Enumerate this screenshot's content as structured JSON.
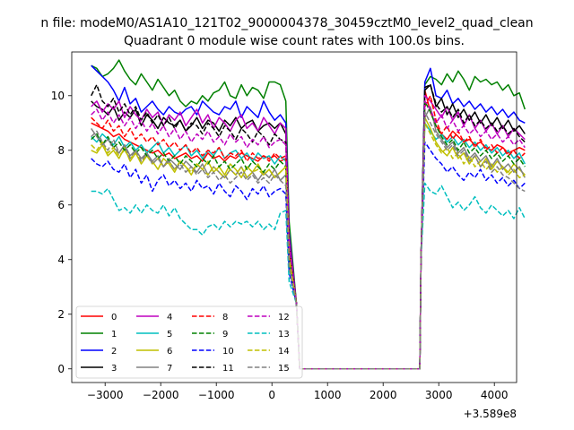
{
  "figure": {
    "suptitle": "n file: modeM0/AS1A10_121T02_9000004378_30459cztM0_level2_quad_clean",
    "offset_text": "+3.589e8"
  },
  "chart_data": {
    "type": "line",
    "title": "Quadrant 0 module wise count rates with 100.0s bins.",
    "xlabel": "",
    "ylabel": "",
    "x_offset": 358900000,
    "xlim": [
      -3600,
      4400
    ],
    "ylim": [
      -0.5,
      11.6
    ],
    "xticks": [
      -3000,
      -2000,
      -1000,
      0,
      1000,
      2000,
      3000,
      4000
    ],
    "xtick_labels": [
      "−3000",
      "−2000",
      "−1000",
      "0",
      "1000",
      "2000",
      "3000",
      "4000"
    ],
    "yticks": [
      0,
      2,
      4,
      6,
      8,
      10
    ],
    "ytick_labels": [
      "0",
      "2",
      "4",
      "6",
      "8",
      "10"
    ],
    "grid": false,
    "legend_location": "lower-left",
    "legend_columns": 4,
    "gap": [
      500,
      2660
    ],
    "series": [
      {
        "name": "0",
        "color": "#ff0000",
        "style": "solid",
        "pre": [
          9.0,
          8.9,
          8.8,
          8.7,
          8.5,
          8.6,
          8.4,
          8.3,
          8.2,
          8.1,
          8.0,
          7.9,
          8.0,
          7.8,
          7.9,
          7.7,
          7.8,
          7.9,
          7.7,
          7.8,
          7.6,
          7.9,
          7.7,
          7.8,
          7.6,
          7.8,
          7.7,
          7.9,
          7.8,
          7.7,
          7.6,
          7.8,
          7.7,
          7.8,
          7.6,
          7.7
        ],
        "post": [
          10.2,
          9.4,
          8.9,
          8.6,
          8.4,
          8.7,
          8.5,
          8.3,
          8.4,
          8.2,
          8.3,
          8.1,
          8.0,
          8.2,
          8.1,
          7.9,
          8.0,
          8.1,
          8.0
        ]
      },
      {
        "name": "1",
        "color": "#008000",
        "style": "solid",
        "pre": [
          11.1,
          11.0,
          10.7,
          10.8,
          11.0,
          11.3,
          10.9,
          10.6,
          10.4,
          10.8,
          10.5,
          10.2,
          10.6,
          10.3,
          10.0,
          10.2,
          9.8,
          9.6,
          9.8,
          9.7,
          10.0,
          9.8,
          10.1,
          10.2,
          10.5,
          10.0,
          9.9,
          10.4,
          10.0,
          10.3,
          10.2,
          9.9,
          10.5,
          10.5,
          10.4,
          9.8
        ],
        "post": [
          10.4,
          10.7,
          10.6,
          10.4,
          10.8,
          10.5,
          10.9,
          10.6,
          10.2,
          10.7,
          10.5,
          10.6,
          10.4,
          10.5,
          10.2,
          10.4,
          10.0,
          10.1,
          9.5
        ]
      },
      {
        "name": "2",
        "color": "#0000ff",
        "style": "solid",
        "pre": [
          11.1,
          10.9,
          10.7,
          10.5,
          10.2,
          9.8,
          10.3,
          9.7,
          9.9,
          9.4,
          9.6,
          9.8,
          9.5,
          9.3,
          9.6,
          9.4,
          9.3,
          9.5,
          9.6,
          9.3,
          9.8,
          9.6,
          9.4,
          9.3,
          9.6,
          9.5,
          9.8,
          9.2,
          9.6,
          9.4,
          9.2,
          9.8,
          9.4,
          9.1,
          9.3,
          9.0
        ],
        "post": [
          10.5,
          11.0,
          10.0,
          9.9,
          10.2,
          9.7,
          9.9,
          9.6,
          9.8,
          9.5,
          9.7,
          9.4,
          9.6,
          9.3,
          9.5,
          9.2,
          9.4,
          9.1,
          9.0
        ]
      },
      {
        "name": "3",
        "color": "#000000",
        "style": "solid",
        "pre": [
          9.8,
          9.6,
          9.5,
          9.3,
          9.6,
          9.1,
          9.4,
          9.2,
          9.5,
          8.9,
          9.3,
          9.1,
          8.8,
          9.2,
          9.0,
          8.9,
          9.1,
          8.7,
          8.9,
          9.2,
          8.8,
          9.1,
          9.0,
          8.7,
          9.1,
          8.9,
          9.2,
          8.8,
          9.0,
          9.1,
          8.7,
          8.9,
          9.0,
          8.8,
          9.0,
          8.6
        ],
        "post": [
          10.2,
          10.4,
          9.6,
          9.9,
          9.3,
          9.7,
          9.2,
          9.5,
          9.1,
          9.4,
          9.0,
          9.3,
          8.9,
          9.2,
          8.8,
          9.1,
          8.7,
          8.9,
          8.6
        ]
      },
      {
        "name": "4",
        "color": "#bf00bf",
        "style": "solid",
        "pre": [
          9.6,
          9.8,
          9.4,
          9.7,
          9.5,
          9.8,
          9.2,
          9.6,
          9.3,
          9.1,
          9.5,
          9.2,
          9.4,
          8.9,
          9.3,
          9.1,
          9.4,
          8.9,
          9.2,
          9.5,
          9.0,
          9.3,
          8.8,
          9.2,
          9.0,
          8.7,
          9.1,
          9.3,
          8.8,
          9.0,
          8.7,
          9.2,
          8.9,
          8.6,
          9.0,
          8.8
        ],
        "post": [
          10.0,
          9.8,
          9.5,
          9.2,
          9.6,
          9.1,
          9.4,
          8.9,
          9.3,
          8.8,
          9.1,
          8.7,
          9.0,
          8.6,
          8.9,
          8.5,
          8.8,
          8.6,
          8.4
        ]
      },
      {
        "name": "5",
        "color": "#00bfbf",
        "style": "solid",
        "pre": [
          8.5,
          8.3,
          8.6,
          8.4,
          8.2,
          8.5,
          8.1,
          8.3,
          8.0,
          8.2,
          7.9,
          8.1,
          8.3,
          7.9,
          8.1,
          7.8,
          8.0,
          8.2,
          7.8,
          8.0,
          7.7,
          8.0,
          7.8,
          8.1,
          7.7,
          7.9,
          8.0,
          7.7,
          7.9,
          7.6,
          7.9,
          7.7,
          7.8,
          7.5,
          7.8,
          7.6
        ],
        "post": [
          9.0,
          8.7,
          8.4,
          8.6,
          8.3,
          8.5,
          8.2,
          8.4,
          8.1,
          8.3,
          8.0,
          8.2,
          7.9,
          8.1,
          7.8,
          8.0,
          7.7,
          7.9,
          7.5
        ]
      },
      {
        "name": "6",
        "color": "#bfbf00",
        "style": "solid",
        "pre": [
          8.0,
          7.9,
          8.2,
          7.8,
          8.0,
          7.7,
          8.1,
          7.6,
          7.9,
          7.5,
          7.8,
          7.6,
          7.3,
          7.7,
          7.5,
          7.2,
          7.6,
          7.4,
          7.1,
          7.5,
          7.3,
          7.6,
          7.2,
          7.4,
          7.1,
          7.5,
          7.3,
          7.0,
          7.4,
          7.2,
          7.5,
          7.1,
          7.3,
          7.0,
          7.2,
          7.4
        ],
        "post": [
          9.2,
          8.8,
          8.3,
          8.0,
          7.8,
          8.1,
          7.7,
          7.9,
          7.5,
          7.8,
          7.4,
          7.7,
          7.3,
          7.6,
          7.4,
          7.2,
          7.5,
          7.3,
          7.1
        ]
      },
      {
        "name": "7",
        "color": "#808080",
        "style": "solid",
        "pre": [
          8.8,
          8.5,
          8.2,
          8.4,
          8.1,
          7.9,
          8.2,
          7.8,
          8.0,
          7.7,
          7.9,
          7.6,
          7.8,
          7.4,
          7.7,
          7.5,
          7.3,
          7.6,
          7.4,
          7.2,
          7.5,
          7.1,
          7.4,
          7.2,
          7.0,
          7.3,
          7.1,
          7.4,
          7.0,
          7.2,
          6.9,
          7.2,
          7.0,
          7.3,
          6.9,
          7.1
        ],
        "post": [
          9.2,
          9.6,
          8.7,
          8.4,
          8.1,
          8.3,
          7.9,
          8.1,
          7.7,
          7.9,
          7.6,
          7.8,
          7.4,
          7.7,
          7.3,
          7.5,
          7.2,
          7.4,
          7.0
        ]
      },
      {
        "name": "8",
        "color": "#ff0000",
        "style": "dashed",
        "pre": [
          9.2,
          9.0,
          8.8,
          9.1,
          8.7,
          8.9,
          8.5,
          8.8,
          8.4,
          8.6,
          8.3,
          8.5,
          8.2,
          8.4,
          8.1,
          8.3,
          8.0,
          8.2,
          7.9,
          8.1,
          7.8,
          8.0,
          7.9,
          8.1,
          7.7,
          7.9,
          7.8,
          8.0,
          7.6,
          7.9,
          7.7,
          7.8,
          7.6,
          7.9,
          7.7,
          7.8
        ],
        "post": [
          9.6,
          10.0,
          9.1,
          8.6,
          8.9,
          8.4,
          8.7,
          8.3,
          8.5,
          8.1,
          8.4,
          8.0,
          8.2,
          7.9,
          8.1,
          7.8,
          8.0,
          7.7,
          7.9
        ]
      },
      {
        "name": "9",
        "color": "#008000",
        "style": "dashed",
        "pre": [
          8.4,
          8.6,
          8.2,
          8.5,
          8.1,
          8.3,
          8.0,
          8.2,
          7.9,
          8.1,
          7.8,
          8.0,
          7.7,
          7.9,
          7.6,
          7.8,
          7.5,
          7.8,
          7.6,
          7.4,
          7.7,
          7.5,
          7.8,
          7.4,
          7.6,
          7.3,
          7.5,
          7.7,
          7.3,
          7.6,
          7.4,
          7.2,
          7.5,
          7.3,
          7.6,
          7.4
        ],
        "post": [
          9.8,
          9.4,
          8.9,
          8.5,
          8.2,
          8.4,
          8.0,
          8.3,
          7.9,
          8.1,
          7.8,
          8.0,
          7.7,
          7.9,
          7.6,
          7.8,
          7.5,
          7.7,
          7.4
        ]
      },
      {
        "name": "10",
        "color": "#0000ff",
        "style": "dashed",
        "pre": [
          7.7,
          7.5,
          7.4,
          7.6,
          7.3,
          7.2,
          7.5,
          7.0,
          7.3,
          6.8,
          7.1,
          6.5,
          6.9,
          7.1,
          6.7,
          6.9,
          6.6,
          6.8,
          6.5,
          6.9,
          6.6,
          6.7,
          6.4,
          6.8,
          6.5,
          6.3,
          6.7,
          6.5,
          6.2,
          6.6,
          6.4,
          6.7,
          6.3,
          6.5,
          6.6,
          6.4
        ],
        "post": [
          8.3,
          8.0,
          7.7,
          7.5,
          7.2,
          7.4,
          7.1,
          6.9,
          7.2,
          7.0,
          7.3,
          6.9,
          7.1,
          6.8,
          7.0,
          6.7,
          6.9,
          6.6,
          6.8
        ]
      },
      {
        "name": "11",
        "color": "#000000",
        "style": "dashed",
        "pre": [
          10.0,
          10.4,
          9.8,
          9.6,
          9.9,
          9.4,
          9.7,
          9.3,
          9.6,
          9.1,
          9.4,
          9.0,
          9.3,
          8.9,
          9.2,
          8.8,
          9.1,
          8.7,
          9.0,
          8.9,
          8.6,
          9.0,
          8.8,
          8.5,
          8.9,
          8.7,
          8.4,
          8.8,
          8.6,
          8.3,
          8.7,
          8.5,
          8.2,
          8.6,
          8.4,
          8.3
        ],
        "post": [
          10.3,
          10.4,
          9.7,
          9.4,
          9.6,
          9.2,
          9.5,
          9.0,
          9.3,
          8.9,
          9.1,
          8.8,
          9.0,
          8.7,
          8.9,
          8.6,
          8.8,
          8.5,
          8.3
        ]
      },
      {
        "name": "12",
        "color": "#bf00bf",
        "style": "dashed",
        "pre": [
          9.3,
          9.5,
          9.1,
          9.4,
          9.0,
          9.3,
          8.9,
          9.2,
          8.8,
          9.1,
          8.7,
          9.0,
          8.6,
          8.9,
          8.5,
          8.8,
          8.4,
          8.7,
          8.3,
          8.6,
          8.4,
          8.7,
          8.3,
          8.5,
          8.2,
          8.6,
          8.3,
          8.5,
          8.1,
          8.4,
          8.2,
          8.5,
          8.1,
          8.3,
          8.4,
          8.2
        ],
        "post": [
          9.8,
          9.5,
          9.0,
          9.3,
          8.8,
          9.1,
          8.7,
          8.9,
          8.6,
          8.8,
          8.5,
          8.7,
          8.4,
          8.6,
          8.3,
          8.5,
          8.2,
          8.4,
          8.1
        ]
      },
      {
        "name": "13",
        "color": "#00bfbf",
        "style": "dashed",
        "pre": [
          6.5,
          6.5,
          6.4,
          6.6,
          6.2,
          5.8,
          5.9,
          5.7,
          6.0,
          5.7,
          6.0,
          5.8,
          5.7,
          6.0,
          5.6,
          5.9,
          5.5,
          5.3,
          5.1,
          5.1,
          4.9,
          5.2,
          5.3,
          5.1,
          5.4,
          5.2,
          5.4,
          5.3,
          5.4,
          5.2,
          5.4,
          5.1,
          5.3,
          5.1,
          5.7,
          5.8
        ],
        "post": [
          6.8,
          6.5,
          6.4,
          6.7,
          6.3,
          5.9,
          6.1,
          5.8,
          6.0,
          6.3,
          5.9,
          5.7,
          6.0,
          5.8,
          5.6,
          5.8,
          5.5,
          5.9,
          5.5
        ]
      },
      {
        "name": "14",
        "color": "#bfbf00",
        "style": "dashed",
        "pre": [
          8.2,
          8.0,
          8.3,
          7.9,
          8.1,
          7.8,
          8.0,
          7.7,
          7.9,
          7.6,
          7.8,
          7.5,
          7.7,
          7.4,
          7.6,
          7.3,
          7.6,
          7.4,
          7.2,
          7.5,
          7.3,
          7.1,
          7.4,
          7.2,
          7.0,
          7.3,
          7.1,
          7.4,
          7.0,
          7.2,
          7.3,
          7.1,
          7.3,
          7.0,
          7.2,
          7.4
        ],
        "post": [
          9.0,
          8.6,
          8.2,
          7.9,
          8.1,
          7.7,
          7.9,
          7.5,
          7.8,
          7.4,
          7.6,
          7.3,
          7.5,
          7.2,
          7.4,
          7.1,
          7.3,
          7.0,
          7.1
        ]
      },
      {
        "name": "15",
        "color": "#808080",
        "style": "dashed",
        "pre": [
          8.5,
          8.7,
          8.3,
          8.0,
          8.4,
          7.9,
          8.2,
          7.7,
          8.0,
          7.6,
          7.9,
          7.5,
          7.7,
          7.4,
          7.6,
          7.3,
          7.5,
          7.2,
          7.4,
          7.1,
          7.3,
          7.0,
          7.2,
          6.9,
          7.1,
          6.8,
          7.0,
          7.2,
          6.9,
          7.1,
          6.8,
          7.0,
          6.8,
          7.1,
          6.9,
          6.7
        ],
        "post": [
          9.4,
          9.0,
          8.6,
          8.3,
          8.0,
          8.2,
          7.8,
          8.0,
          7.6,
          7.8,
          7.4,
          7.6,
          7.2,
          7.4,
          7.1,
          7.0,
          6.8,
          6.6,
          6.5
        ]
      }
    ]
  }
}
